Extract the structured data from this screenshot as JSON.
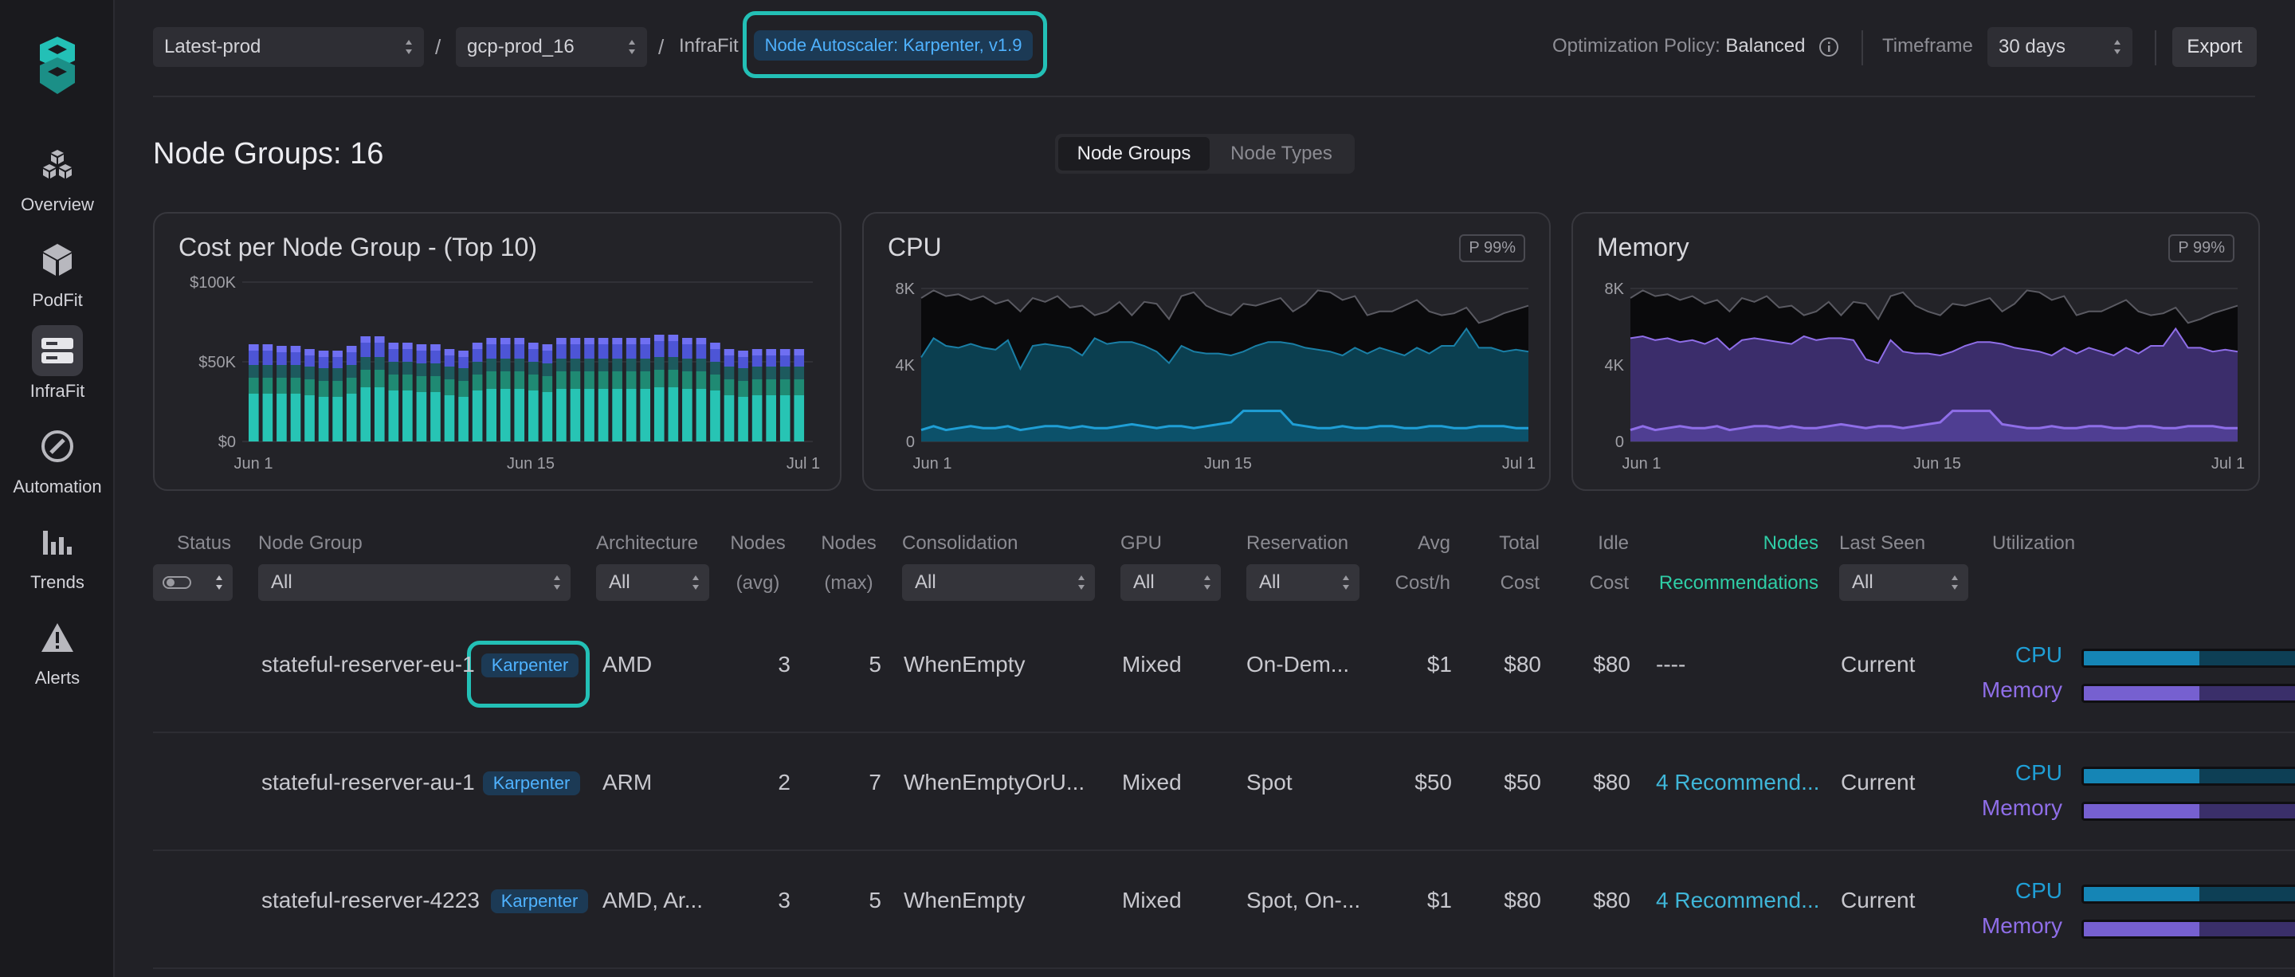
{
  "sidebar": {
    "items": [
      {
        "label": "Overview",
        "icon": "cubes-icon"
      },
      {
        "label": "PodFit",
        "icon": "cube-icon"
      },
      {
        "label": "InfraFit",
        "icon": "server-icon"
      },
      {
        "label": "Automation",
        "icon": "compass-icon"
      },
      {
        "label": "Trends",
        "icon": "bar-chart-icon"
      },
      {
        "label": "Alerts",
        "icon": "warning-icon"
      }
    ],
    "active": "InfraFit"
  },
  "topbar": {
    "cluster_select": "Latest-prod",
    "project_select": "gcp-prod_16",
    "breadcrumb": "InfraFit",
    "autoscaler_badge": "Node Autoscaler: Karpenter, v1.9",
    "policy_label": "Optimization Policy:",
    "policy_value": "Balanced",
    "timeframe_label": "Timeframe",
    "timeframe_value": "30 days",
    "export_label": "Export"
  },
  "page": {
    "title": "Node Groups: 16",
    "tabs": [
      "Node Groups",
      "Node Types"
    ],
    "active_tab": "Node Groups"
  },
  "colors": {
    "accent_teal": "#23c0b6",
    "cpu_blue": "#1f9fd6",
    "memory_purple": "#8f6ee8",
    "link_green": "#2fcda6"
  },
  "chart_data": [
    {
      "type": "bar",
      "title": "Cost per Node Group - (Top 10)",
      "x_ticks": [
        "Jun 1",
        "Jun 15",
        "Jul 1"
      ],
      "y_ticks": [
        "$0",
        "$50K",
        "$100K"
      ],
      "ylim": [
        0,
        100000
      ],
      "series": [
        {
          "values": [
            30000,
            30000,
            30000,
            30000,
            29000,
            28000,
            28000,
            30000,
            34000,
            34000,
            32000,
            32000,
            31000,
            31000,
            29000,
            28000,
            32000,
            33000,
            33000,
            33000,
            32000,
            31000,
            33000,
            33000,
            33000,
            33000,
            33000,
            33000,
            33000,
            34000,
            34000,
            33000,
            33000,
            32000,
            29000,
            28000,
            29000,
            29000,
            29000,
            29000
          ],
          "color": "#27c4b4"
        },
        {
          "values": [
            10000,
            10000,
            10000,
            10000,
            10000,
            10000,
            10000,
            10000,
            11000,
            11000,
            10000,
            10000,
            10000,
            10000,
            10000,
            10000,
            10000,
            11000,
            11000,
            11000,
            10000,
            10000,
            11000,
            11000,
            11000,
            11000,
            11000,
            11000,
            11000,
            11000,
            11000,
            11000,
            11000,
            10000,
            10000,
            10000,
            10000,
            10000,
            10000,
            10000
          ],
          "color": "#1f8a73"
        },
        {
          "values": [
            8000,
            8000,
            8000,
            8000,
            8000,
            8000,
            8000,
            8000,
            8000,
            8000,
            8000,
            8000,
            8000,
            8000,
            8000,
            8000,
            8000,
            8000,
            8000,
            8000,
            8000,
            8000,
            8000,
            8000,
            8000,
            8000,
            8000,
            8000,
            8000,
            8000,
            8000,
            8000,
            8000,
            8000,
            8000,
            8000,
            8000,
            8000,
            8000,
            8000
          ],
          "color": "#1d5a5e"
        },
        {
          "values": [
            9000,
            9000,
            8000,
            8000,
            7000,
            7000,
            7000,
            8000,
            9000,
            9000,
            8000,
            8000,
            8000,
            8000,
            7000,
            7000,
            8000,
            9000,
            9000,
            9000,
            8000,
            8000,
            9000,
            9000,
            9000,
            9000,
            9000,
            9000,
            9000,
            10000,
            10000,
            9000,
            9000,
            8000,
            7000,
            7000,
            7000,
            7000,
            7000,
            7000
          ],
          "color": "#4d55d6"
        },
        {
          "values": [
            4000,
            4000,
            4000,
            4000,
            4000,
            4000,
            4000,
            4000,
            4000,
            4000,
            4000,
            4000,
            4000,
            4000,
            4000,
            4000,
            4000,
            4000,
            4000,
            4000,
            4000,
            4000,
            4000,
            4000,
            4000,
            4000,
            4000,
            4000,
            4000,
            4000,
            4000,
            4000,
            4000,
            4000,
            4000,
            4000,
            4000,
            4000,
            4000,
            4000
          ],
          "color": "#6f6ff2"
        }
      ]
    },
    {
      "type": "area",
      "title": "CPU",
      "badge": "P 99%",
      "x_ticks": [
        "Jun 1",
        "Jun 15",
        "Jul 1"
      ],
      "y_ticks": [
        "0",
        "4K",
        "8K"
      ],
      "ylim": [
        0,
        8000
      ],
      "series": [
        {
          "values": [
            7500,
            7900,
            7600,
            7700,
            7400,
            7600,
            7200,
            7400,
            6800,
            7500,
            7300,
            7600,
            7000,
            7100,
            6600,
            6800,
            7300,
            6600,
            7300,
            7200,
            6400,
            7600,
            7800,
            7100,
            6800,
            6600,
            7200,
            7100,
            7300,
            7500,
            6800,
            7200,
            7900,
            7800,
            7400,
            7600,
            6600,
            6800,
            6800,
            7100,
            7400,
            6800,
            6600,
            6700,
            7000,
            6200,
            6400,
            6700,
            6900,
            7100
          ],
          "color": "#0a0a0c"
        },
        {
          "values": [
            4400,
            5400,
            5000,
            4900,
            5100,
            4900,
            4800,
            5300,
            3800,
            5000,
            5100,
            5000,
            4900,
            4500,
            5400,
            5100,
            5200,
            5200,
            5000,
            4700,
            4100,
            5000,
            4700,
            4600,
            4600,
            4500,
            4700,
            5000,
            5200,
            5200,
            5100,
            4900,
            4800,
            4700,
            4500,
            4900,
            4600,
            4900,
            4700,
            4500,
            4900,
            4600,
            5000,
            5000,
            5900,
            4900,
            4900,
            4700,
            4800,
            4700
          ],
          "color": "#0b3f50"
        },
        {
          "values": [
            600,
            800,
            600,
            700,
            800,
            700,
            700,
            800,
            600,
            700,
            800,
            800,
            700,
            800,
            700,
            700,
            800,
            900,
            800,
            700,
            800,
            800,
            700,
            800,
            900,
            1000,
            1600,
            1600,
            1600,
            1600,
            900,
            800,
            700,
            700,
            800,
            700,
            700,
            800,
            800,
            700,
            700,
            800,
            800,
            700,
            700,
            800,
            800,
            800,
            700,
            700
          ],
          "color": "#1f9fd6"
        }
      ]
    },
    {
      "type": "area",
      "title": "Memory",
      "badge": "P 99%",
      "x_ticks": [
        "Jun 1",
        "Jun 15",
        "Jul 1"
      ],
      "y_ticks": [
        "0",
        "4K",
        "8K"
      ],
      "ylim": [
        0,
        8000
      ],
      "series": [
        {
          "values": [
            7500,
            7900,
            7600,
            7700,
            7400,
            7600,
            7200,
            7400,
            6800,
            7500,
            7300,
            7600,
            7000,
            7100,
            6600,
            6800,
            7300,
            6600,
            7300,
            7200,
            6400,
            7600,
            7800,
            7100,
            6800,
            6600,
            7200,
            7100,
            7300,
            7500,
            6800,
            7200,
            7900,
            7800,
            7400,
            7600,
            6600,
            6800,
            6800,
            7100,
            7400,
            6800,
            6600,
            6700,
            7000,
            6200,
            6400,
            6700,
            6900,
            7100
          ],
          "color": "#0a0a0c"
        },
        {
          "values": [
            5400,
            5500,
            5300,
            5400,
            5200,
            5300,
            5100,
            5400,
            4800,
            5300,
            5400,
            5300,
            5200,
            5100,
            5500,
            5300,
            5400,
            5400,
            5300,
            4300,
            4100,
            5300,
            4700,
            4600,
            4600,
            4500,
            4700,
            5000,
            5200,
            5200,
            5100,
            4900,
            4800,
            4700,
            4500,
            4900,
            4600,
            4900,
            4700,
            4500,
            4900,
            4600,
            5000,
            5000,
            5900,
            4900,
            4900,
            4700,
            4800,
            4700
          ],
          "color": "#3b2d6b"
        },
        {
          "values": [
            600,
            800,
            600,
            700,
            800,
            700,
            700,
            800,
            600,
            700,
            800,
            800,
            700,
            800,
            700,
            700,
            800,
            900,
            800,
            700,
            800,
            800,
            700,
            800,
            900,
            1000,
            1600,
            1600,
            1600,
            1600,
            900,
            800,
            700,
            700,
            800,
            700,
            700,
            800,
            800,
            700,
            700,
            800,
            800,
            700,
            700,
            800,
            800,
            800,
            700,
            700
          ],
          "color": "#8f6ee8"
        }
      ]
    }
  ],
  "table": {
    "headers": {
      "status": "Status",
      "node_group": "Node Group",
      "architecture": "Architecture",
      "nodes_avg": [
        "Nodes",
        "(avg)"
      ],
      "nodes_max": [
        "Nodes",
        "(max)"
      ],
      "consolidation": "Consolidation",
      "gpu": "GPU",
      "reservation": "Reservation",
      "avg_cost": [
        "Avg",
        "Cost/h"
      ],
      "total_cost": [
        "Total",
        "Cost"
      ],
      "idle_cost": [
        "Idle",
        "Cost"
      ],
      "recommendations": [
        "Nodes",
        "Recommendations"
      ],
      "last_seen": "Last Seen",
      "utilization": "Utilization"
    },
    "filters": {
      "node_group": "All",
      "architecture": "All",
      "consolidation": "All",
      "gpu": "All",
      "reservation": "All",
      "last_seen": "All"
    },
    "rows": [
      {
        "name": "stateful-reserver-eu-1",
        "badge": "Karpenter",
        "arch": "AMD",
        "nodes_avg": "3",
        "nodes_max": "5",
        "consolidation": "WhenEmpty",
        "gpu": "Mixed",
        "reservation": "On-Dem...",
        "avg_cost": "$1",
        "total_cost": "$80",
        "idle_cost": "$80",
        "recommendations": "----",
        "last_seen": "Current",
        "cpu_util": 0.33,
        "mem_util": 0.33
      },
      {
        "name": "stateful-reserver-au-1",
        "badge": "Karpenter",
        "arch": "ARM",
        "nodes_avg": "2",
        "nodes_max": "7",
        "consolidation": "WhenEmptyOrU...",
        "gpu": "Mixed",
        "reservation": "Spot",
        "avg_cost": "$50",
        "total_cost": "$50",
        "idle_cost": "$80",
        "recommendations": "4 Recommend...",
        "last_seen": "Current",
        "cpu_util": 0.33,
        "mem_util": 0.33
      },
      {
        "name": "stateful-reserver-4223",
        "badge": "Karpenter",
        "arch": "AMD, Ar...",
        "nodes_avg": "3",
        "nodes_max": "5",
        "consolidation": "WhenEmpty",
        "gpu": "Mixed",
        "reservation": "Spot, On-...",
        "avg_cost": "$1",
        "total_cost": "$80",
        "idle_cost": "$80",
        "recommendations": "4 Recommend...",
        "last_seen": "Current",
        "cpu_util": 0.33,
        "mem_util": 0.33
      }
    ],
    "util_labels": {
      "cpu": "CPU",
      "memory": "Memory"
    }
  }
}
